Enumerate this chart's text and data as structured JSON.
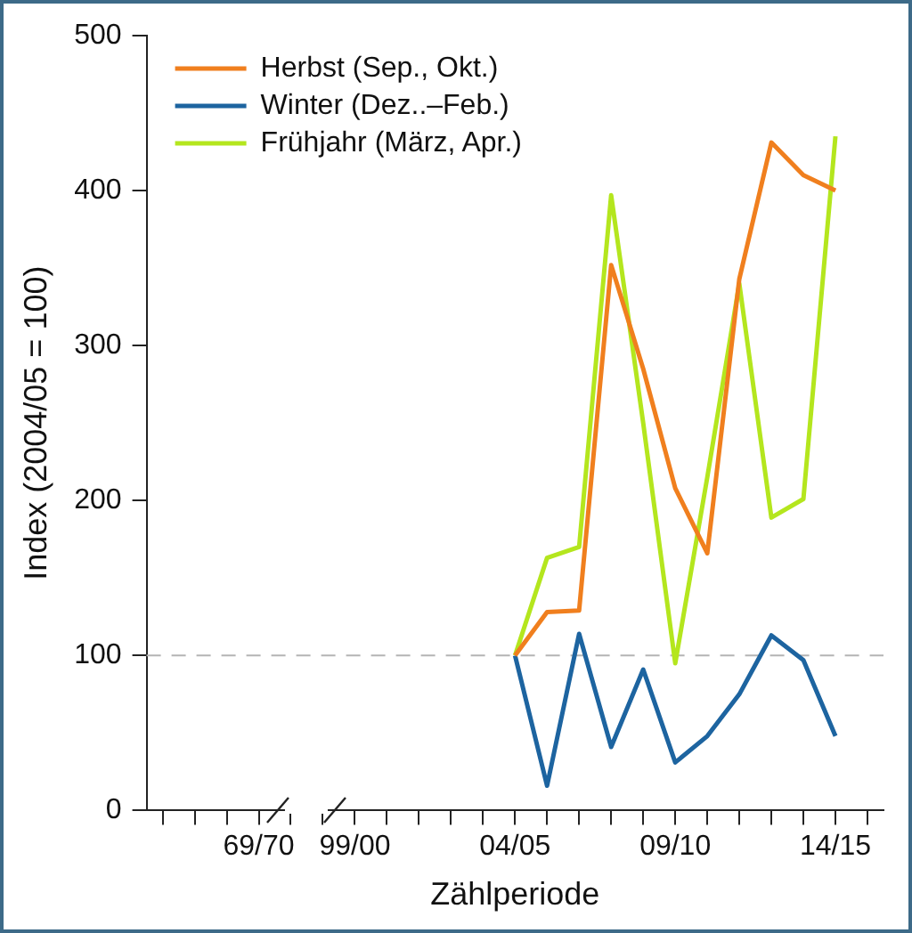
{
  "chart_data": {
    "type": "line",
    "xlabel": "Zählperiode",
    "ylabel": "Index (2004/05 = 100)",
    "categories": [
      null,
      null,
      null,
      "69/70",
      null,
      null,
      "99/00",
      null,
      null,
      null,
      null,
      "04/05",
      null,
      null,
      null,
      null,
      "09/10",
      null,
      null,
      null,
      null,
      "14/15",
      null
    ],
    "series": [
      {
        "name": "Herbst (Sep., Okt.)",
        "color": "#f07f1e",
        "values": [
          null,
          null,
          null,
          null,
          null,
          null,
          null,
          null,
          null,
          null,
          null,
          100,
          128,
          129,
          352,
          285,
          208,
          166,
          343,
          431,
          410,
          400,
          null
        ]
      },
      {
        "name": "Winter (Dez..–Feb.)",
        "color": "#1d64a0",
        "values": [
          null,
          null,
          null,
          null,
          null,
          null,
          null,
          null,
          null,
          null,
          null,
          100,
          16,
          114,
          41,
          91,
          31,
          48,
          75,
          113,
          97,
          48,
          null
        ]
      },
      {
        "name": "Frühjahr (März, Apr.)",
        "color": "#b4e61e",
        "values": [
          null,
          null,
          null,
          null,
          null,
          null,
          null,
          null,
          null,
          null,
          null,
          100,
          163,
          170,
          397,
          250,
          95,
          215,
          340,
          189,
          201,
          435,
          null
        ]
      }
    ],
    "ylim": [
      0,
      500
    ],
    "yticks": [
      0,
      100,
      200,
      300,
      400,
      500
    ],
    "grid": false,
    "legend": "top left",
    "marker": "none",
    "line_style": "solid",
    "ref_lines": [
      {
        "axis": "y",
        "value": 100,
        "color": "#b4b4b4",
        "line_style": "dashed"
      }
    ]
  }
}
